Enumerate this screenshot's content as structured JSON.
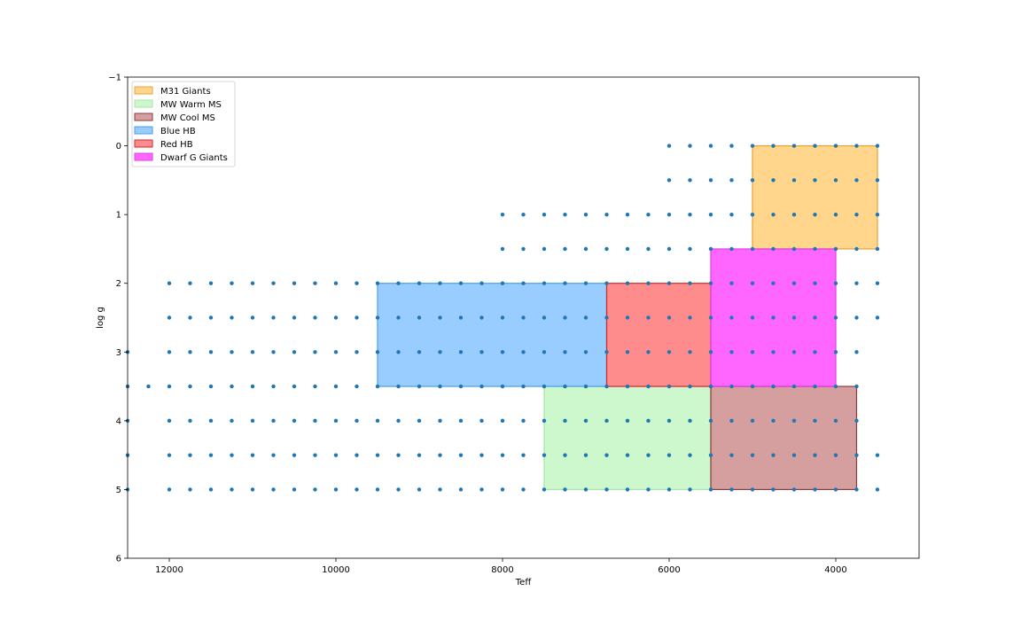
{
  "chart_data": {
    "type": "scatter",
    "xlabel": "Teff",
    "ylabel": "log g",
    "xlim": [
      12500,
      3000
    ],
    "ylim": [
      6,
      -1
    ],
    "x_inverted": true,
    "y_inverted": true,
    "x_ticks": [
      12000,
      10000,
      8000,
      6000,
      4000
    ],
    "y_ticks": [
      -1,
      0,
      1,
      2,
      3,
      4,
      5,
      6
    ],
    "y_tick_labels": [
      "−1",
      "0",
      "1",
      "2",
      "3",
      "4",
      "5",
      "6"
    ],
    "grid": false,
    "legend_placement": "top-left",
    "point_color": "#1f77b4",
    "regions": [
      {
        "name": "M31 Giants",
        "teff": [
          3500,
          5000
        ],
        "logg": [
          0,
          1.5
        ],
        "fill": "#ffa500",
        "alpha": 0.45,
        "edge": "#e8a23a"
      },
      {
        "name": "MW Warm MS",
        "teff": [
          5500,
          7500
        ],
        "logg": [
          3.5,
          5
        ],
        "fill": "#90ee90",
        "alpha": 0.45,
        "edge": "#a6e6a6"
      },
      {
        "name": "MW Cool MS",
        "teff": [
          3750,
          5500
        ],
        "logg": [
          3.5,
          5
        ],
        "fill": "#a52a2a",
        "alpha": 0.45,
        "edge": "#8b3b3b"
      },
      {
        "name": "Blue HB",
        "teff": [
          6750,
          9500
        ],
        "logg": [
          2,
          3.5
        ],
        "fill": "#1e90ff",
        "alpha": 0.45,
        "edge": "#4a9fe8"
      },
      {
        "name": "Red HB",
        "teff": [
          5500,
          6750
        ],
        "logg": [
          2,
          3.5
        ],
        "fill": "#ff0000",
        "alpha": 0.45,
        "edge": "#d62728"
      },
      {
        "name": "Dwarf G Giants",
        "teff": [
          4000,
          5500
        ],
        "logg": [
          1.5,
          3.5
        ],
        "fill": "#ff00ff",
        "alpha": 0.6,
        "edge": "#e040e0"
      }
    ],
    "grid_rows": [
      {
        "logg": 0,
        "teff_min": 3500,
        "teff_max": 6000,
        "step": 250
      },
      {
        "logg": 0.5,
        "teff_min": 3500,
        "teff_max": 6000,
        "step": 250
      },
      {
        "logg": 1,
        "teff_min": 3500,
        "teff_max": 8000,
        "step": 250
      },
      {
        "logg": 1.5,
        "teff_min": 3500,
        "teff_max": 8000,
        "step": 250
      },
      {
        "logg": 2,
        "teff_min": 3500,
        "teff_max": 12000,
        "step": 250
      },
      {
        "logg": 2.5,
        "teff_min": 3500,
        "teff_max": 12000,
        "step": 250
      },
      {
        "logg": 3,
        "teff_min": 3750,
        "teff_max": 12500,
        "step": 250
      },
      {
        "logg": 3.5,
        "teff_min": 3750,
        "teff_max": 12500,
        "step": 250
      },
      {
        "logg": 4,
        "teff_min": 3750,
        "teff_max": 12500,
        "step": 250
      },
      {
        "logg": 4.5,
        "teff_min": 3500,
        "teff_max": 12500,
        "step": 250
      },
      {
        "logg": 5,
        "teff_min": 3500,
        "teff_max": 12500,
        "step": 250
      }
    ],
    "grid_gaps": [
      {
        "logg": 3,
        "teff_min": 12250,
        "teff_max": 12250
      },
      {
        "logg": 4,
        "teff_min": 12250,
        "teff_max": 12250
      },
      {
        "logg": 4.5,
        "teff_min": 12250,
        "teff_max": 12250
      },
      {
        "logg": 5,
        "teff_min": 12250,
        "teff_max": 12250
      }
    ]
  }
}
